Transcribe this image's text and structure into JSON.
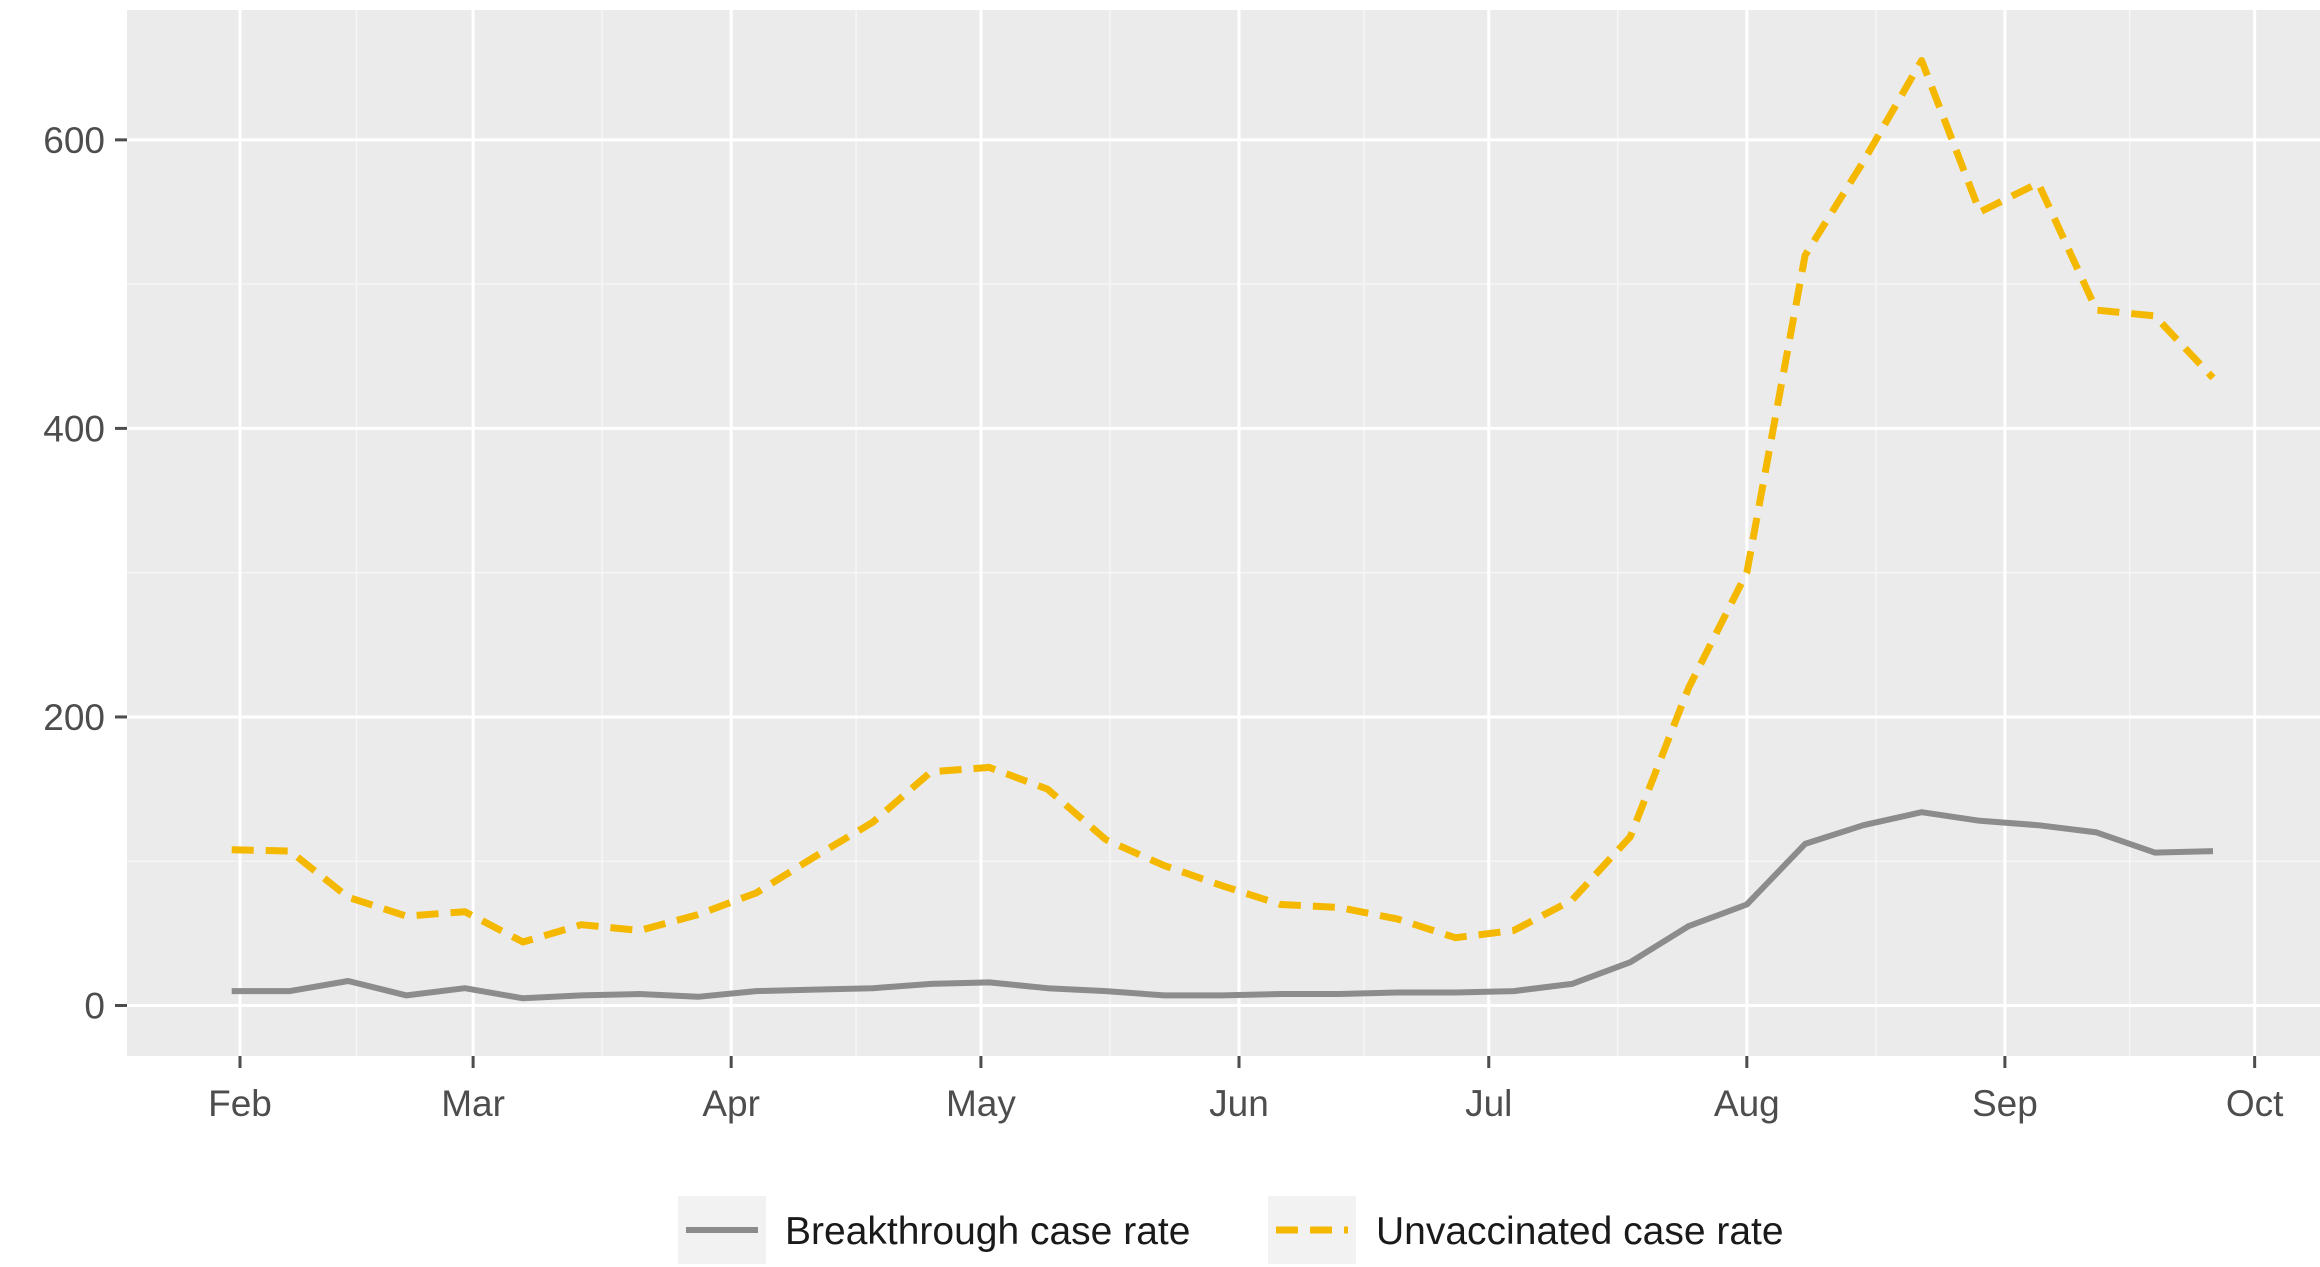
{
  "chart_data": {
    "type": "line",
    "title": "",
    "xlabel": "",
    "ylabel": "",
    "ylim": [
      -35,
      690
    ],
    "grid": true,
    "legend_position": "bottom",
    "x_ticks": [
      {
        "label": "Feb",
        "day": 0
      },
      {
        "label": "Mar",
        "day": 28
      },
      {
        "label": "Apr",
        "day": 59
      },
      {
        "label": "May",
        "day": 89
      },
      {
        "label": "Jun",
        "day": 120
      },
      {
        "label": "Jul",
        "day": 150
      },
      {
        "label": "Aug",
        "day": 181
      },
      {
        "label": "Sep",
        "day": 212
      },
      {
        "label": "Oct",
        "day": 242
      }
    ],
    "y_ticks": [
      0,
      200,
      400,
      600
    ],
    "series": [
      {
        "name": "Breakthrough case rate",
        "color": "#8c8c8c",
        "style": "solid",
        "points": [
          [
            -1,
            10
          ],
          [
            6,
            10
          ],
          [
            13,
            17
          ],
          [
            20,
            7
          ],
          [
            27,
            12
          ],
          [
            34,
            5
          ],
          [
            41,
            7
          ],
          [
            48,
            8
          ],
          [
            55,
            6
          ],
          [
            62,
            10
          ],
          [
            69,
            11
          ],
          [
            76,
            12
          ],
          [
            83,
            15
          ],
          [
            90,
            16
          ],
          [
            97,
            12
          ],
          [
            104,
            10
          ],
          [
            111,
            7
          ],
          [
            118,
            7
          ],
          [
            125,
            8
          ],
          [
            132,
            8
          ],
          [
            139,
            9
          ],
          [
            146,
            9
          ],
          [
            153,
            10
          ],
          [
            160,
            15
          ],
          [
            167,
            30
          ],
          [
            174,
            55
          ],
          [
            181,
            70
          ],
          [
            188,
            112
          ],
          [
            195,
            125
          ],
          [
            202,
            134
          ],
          [
            209,
            128
          ],
          [
            216,
            125
          ],
          [
            223,
            120
          ],
          [
            230,
            106
          ],
          [
            237,
            107
          ]
        ]
      },
      {
        "name": "Unvaccinated case rate",
        "color": "#f5b800",
        "style": "dashed",
        "points": [
          [
            -1,
            108
          ],
          [
            6,
            107
          ],
          [
            13,
            75
          ],
          [
            20,
            62
          ],
          [
            27,
            65
          ],
          [
            34,
            44
          ],
          [
            41,
            56
          ],
          [
            48,
            52
          ],
          [
            55,
            63
          ],
          [
            62,
            78
          ],
          [
            69,
            103
          ],
          [
            76,
            127
          ],
          [
            83,
            162
          ],
          [
            90,
            165
          ],
          [
            97,
            150
          ],
          [
            104,
            115
          ],
          [
            111,
            97
          ],
          [
            118,
            83
          ],
          [
            125,
            70
          ],
          [
            132,
            68
          ],
          [
            139,
            60
          ],
          [
            146,
            47
          ],
          [
            153,
            52
          ],
          [
            160,
            73
          ],
          [
            167,
            117
          ],
          [
            174,
            220
          ],
          [
            181,
            300
          ],
          [
            188,
            520
          ],
          [
            195,
            585
          ],
          [
            202,
            655
          ],
          [
            209,
            550
          ],
          [
            216,
            570
          ],
          [
            223,
            482
          ],
          [
            230,
            478
          ],
          [
            237,
            435
          ]
        ]
      }
    ]
  }
}
